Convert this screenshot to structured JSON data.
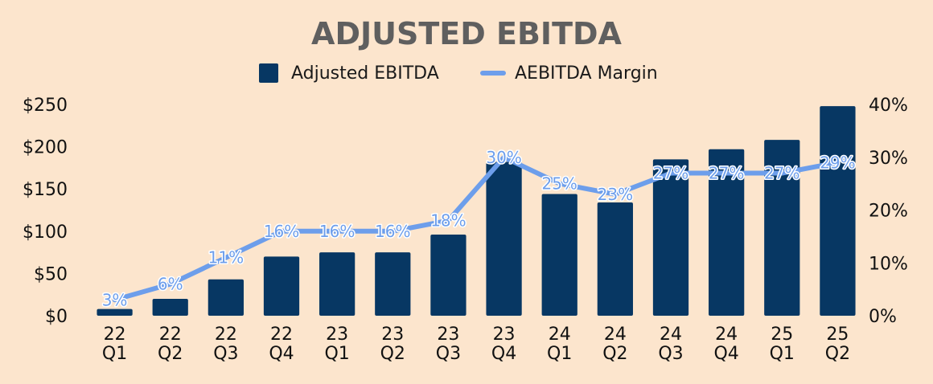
{
  "chart_data": {
    "type": "bar",
    "title": "ADJUSTED EBITDA",
    "categories": [
      "22 Q1",
      "22 Q2",
      "22 Q3",
      "22 Q4",
      "23 Q1",
      "23 Q2",
      "23 Q3",
      "23 Q4",
      "24 Q1",
      "24 Q2",
      "24 Q3",
      "24 Q4",
      "25 Q1",
      "25 Q2"
    ],
    "series": [
      {
        "name": "Adjusted EBITDA",
        "type": "bar",
        "axis": "left",
        "color": "#073763",
        "values": [
          8,
          20,
          43,
          70,
          75,
          75,
          96,
          182,
          144,
          134,
          185,
          197,
          208,
          248
        ]
      },
      {
        "name": "AEBITDA Margin",
        "type": "line",
        "axis": "right",
        "color": "#6d9eeb",
        "values": [
          3,
          6,
          11,
          16,
          16,
          16,
          18,
          30,
          25,
          23,
          27,
          27,
          27,
          29
        ],
        "labels": [
          "3%",
          "6%",
          "11%",
          "16%",
          "16%",
          "16%",
          "18%",
          "30%",
          "25%",
          "23%",
          "27%",
          "27%",
          "27%",
          "29%"
        ]
      }
    ],
    "y_left": {
      "range": [
        0,
        250
      ],
      "ticks": [
        0,
        50,
        100,
        150,
        200,
        250
      ],
      "tick_labels": [
        "$0",
        "$50",
        "$100",
        "$150",
        "$200",
        "$250"
      ]
    },
    "y_right": {
      "range": [
        0,
        40
      ],
      "ticks": [
        0,
        10,
        20,
        30,
        40
      ],
      "tick_labels": [
        "0%",
        "10%",
        "20%",
        "30%",
        "40%"
      ]
    },
    "legend_position": "top-center",
    "grid": false,
    "background": "#fce5cd"
  }
}
